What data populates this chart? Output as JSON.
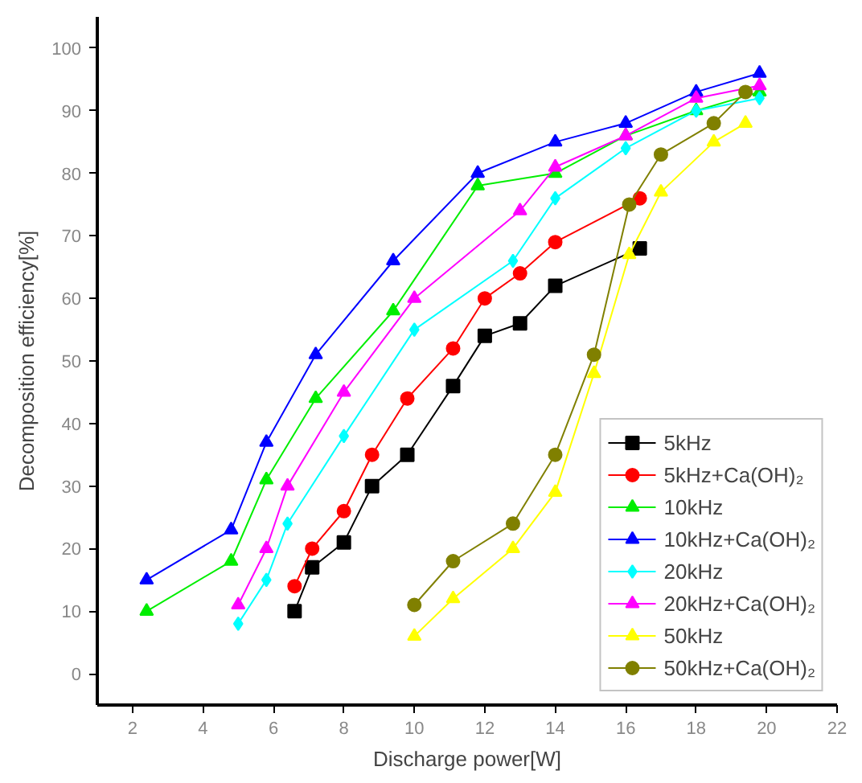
{
  "chart_data": {
    "type": "line",
    "xlabel": "Discharge power[W]",
    "ylabel": "Decomposition efficiency[%]",
    "xlim": [
      1,
      22
    ],
    "ylim": [
      -5,
      105
    ],
    "xticks": [
      2,
      4,
      6,
      8,
      10,
      12,
      14,
      16,
      18,
      20,
      22
    ],
    "yticks": [
      0,
      10,
      20,
      30,
      40,
      50,
      60,
      70,
      80,
      90,
      100
    ],
    "grid": false,
    "legend": "bottom right",
    "line_style": "solid",
    "series": [
      {
        "name": "5kHz",
        "color": "#000000",
        "marker": "square",
        "x": [
          6.6,
          7.1,
          8.0,
          8.8,
          9.8,
          11.1,
          12.0,
          13.0,
          14.0,
          16.4
        ],
        "values": [
          10,
          17,
          21,
          30,
          35,
          46,
          54,
          56,
          62,
          68
        ]
      },
      {
        "name": "5kHz+Ca(OH)₂",
        "color": "#ff0000",
        "marker": "circle",
        "x": [
          6.6,
          7.1,
          8.0,
          8.8,
          9.8,
          11.1,
          12.0,
          13.0,
          14.0,
          16.4
        ],
        "values": [
          14,
          20,
          26,
          35,
          44,
          52,
          60,
          64,
          69,
          76
        ]
      },
      {
        "name": "10kHz",
        "color": "#00ee00",
        "marker": "triangle",
        "x": [
          2.4,
          4.8,
          5.8,
          7.2,
          9.4,
          11.8,
          14.0,
          16.0,
          18.0,
          19.8
        ],
        "values": [
          10,
          18,
          31,
          44,
          58,
          78,
          80,
          86,
          90,
          93
        ]
      },
      {
        "name": "10kHz+Ca(OH)₂",
        "color": "#0000ff",
        "marker": "triangle",
        "x": [
          2.4,
          4.8,
          5.8,
          7.2,
          9.4,
          11.8,
          14.0,
          16.0,
          18.0,
          19.8
        ],
        "values": [
          15,
          23,
          37,
          51,
          66,
          80,
          85,
          88,
          93,
          96
        ]
      },
      {
        "name": "20kHz",
        "color": "#00ffff",
        "marker": "diamond",
        "x": [
          5.0,
          5.8,
          6.4,
          8.0,
          10.0,
          12.8,
          14.0,
          16.0,
          18.0,
          19.8
        ],
        "values": [
          8,
          15,
          24,
          38,
          55,
          66,
          76,
          84,
          90,
          92
        ]
      },
      {
        "name": "20kHz+Ca(OH)₂",
        "color": "#ff00ff",
        "marker": "triangle",
        "x": [
          5.0,
          5.8,
          6.4,
          8.0,
          10.0,
          13.0,
          14.0,
          16.0,
          18.0,
          19.8
        ],
        "values": [
          11,
          20,
          30,
          45,
          60,
          74,
          81,
          86,
          92,
          94
        ]
      },
      {
        "name": "50kHz",
        "color": "#ffff00",
        "marker": "triangle",
        "x": [
          10.0,
          11.1,
          12.8,
          14.0,
          15.1,
          16.1,
          17.0,
          18.5,
          19.4
        ],
        "values": [
          6,
          12,
          20,
          29,
          48,
          67,
          77,
          85,
          88
        ]
      },
      {
        "name": "50kHz+Ca(OH)₂",
        "color": "#808000",
        "marker": "circle",
        "x": [
          10.0,
          11.1,
          12.8,
          14.0,
          15.1,
          16.1,
          17.0,
          18.5,
          19.4
        ],
        "values": [
          11,
          18,
          24,
          35,
          51,
          75,
          83,
          88,
          93
        ]
      }
    ]
  }
}
